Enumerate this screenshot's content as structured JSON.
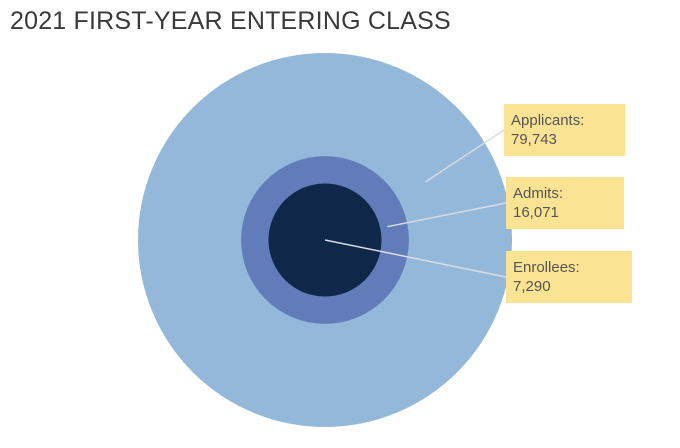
{
  "title": "2021 FIRST-YEAR ENTERING CLASS",
  "chart_data": {
    "type": "nested-circle",
    "title": "2021 FIRST-YEAR ENTERING CLASS",
    "series": [
      {
        "name": "Applicants:",
        "value": 79743,
        "value_label": "79,743",
        "color": "#94b8d9"
      },
      {
        "name": "Admits:",
        "value": 16071,
        "value_label": "16,071",
        "color": "#627cb9"
      },
      {
        "name": "Enrollees:",
        "value": 7290,
        "value_label": "7,290",
        "color": "#0f2749"
      }
    ],
    "label_box_color": "#fae392",
    "leader_color": "#d6dde6"
  }
}
